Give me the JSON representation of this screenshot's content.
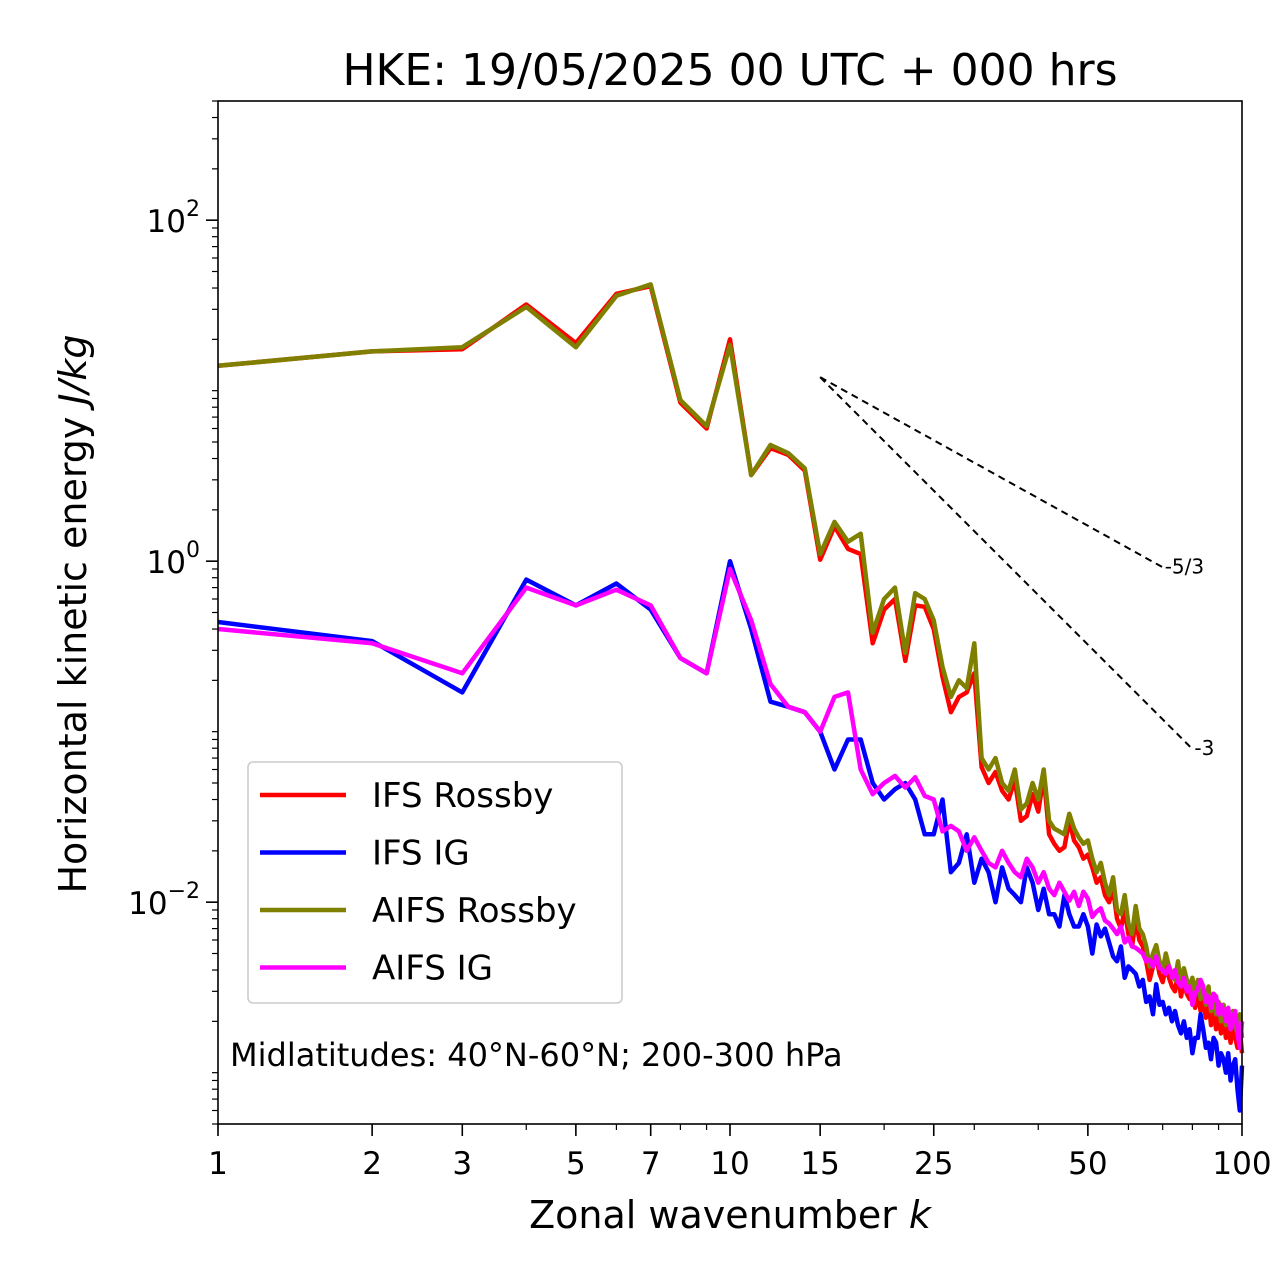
{
  "chart_data": {
    "type": "line",
    "title": "HKE: 19/05/2025 00 UTC + 000 hrs",
    "xlabel": "Zonal wavenumber",
    "xlabel_italic": "k",
    "ylabel": "Horizontal kinetic energy",
    "ylabel_italic": "J/kg",
    "xscale": "log",
    "yscale": "log",
    "xlim": [
      1,
      100
    ],
    "ylim": [
      0.0005,
      500
    ],
    "x_ticks": [
      {
        "value": 1,
        "label": "1"
      },
      {
        "value": 2,
        "label": "2"
      },
      {
        "value": 3,
        "label": "3"
      },
      {
        "value": 5,
        "label": "5"
      },
      {
        "value": 7,
        "label": "7"
      },
      {
        "value": 10,
        "label": "10"
      },
      {
        "value": 15,
        "label": "15"
      },
      {
        "value": 25,
        "label": "25"
      },
      {
        "value": 50,
        "label": "50"
      },
      {
        "value": 100,
        "label": "100"
      }
    ],
    "y_ticks": [
      {
        "value": 0.01,
        "base": "10",
        "exp": "−2"
      },
      {
        "value": 1,
        "base": "10",
        "exp": "0"
      },
      {
        "value": 100,
        "base": "10",
        "exp": "2"
      }
    ],
    "annotation": "Midlatitudes: 40°N-60°N; 200-300 hPa",
    "legend_position": "lower-left",
    "reference_lines": [
      {
        "label": "-5/3",
        "slope": -1.6667,
        "x": [
          15,
          70
        ],
        "y0": 12
      },
      {
        "label": "-3",
        "slope": -3,
        "x": [
          15,
          80
        ],
        "y0": 12
      }
    ],
    "series": [
      {
        "name": "IFS Rossby",
        "color": "#ff0000",
        "x": [
          1,
          2,
          3,
          4,
          5,
          6,
          7,
          8,
          9,
          10,
          11,
          12,
          13,
          14,
          15,
          16,
          17,
          18,
          19,
          20,
          21,
          22,
          23,
          24,
          25,
          26,
          27,
          28,
          29,
          30,
          31,
          32,
          33,
          34,
          35,
          36,
          37,
          38,
          39,
          40,
          41,
          42,
          43,
          44,
          45,
          46,
          47,
          48,
          49,
          50,
          51,
          52,
          53,
          54,
          55,
          56,
          57,
          58,
          59,
          60,
          61,
          62,
          63,
          64,
          65,
          66,
          67,
          68,
          69,
          70,
          71,
          72,
          73,
          74,
          75,
          76,
          77,
          78,
          79,
          80,
          81,
          82,
          83,
          84,
          85,
          86,
          87,
          88,
          89,
          90,
          91,
          92,
          93,
          94,
          95,
          96,
          97,
          98,
          99,
          100
        ],
        "y": [
          14,
          17,
          17.5,
          32,
          19,
          37,
          41,
          8.5,
          6,
          20,
          3.2,
          4.6,
          4.2,
          3.4,
          1.02,
          1.6,
          1.18,
          1.1,
          0.33,
          0.52,
          0.6,
          0.26,
          0.55,
          0.54,
          0.4,
          0.21,
          0.13,
          0.16,
          0.17,
          0.22,
          0.062,
          0.05,
          0.058,
          0.045,
          0.04,
          0.052,
          0.03,
          0.032,
          0.043,
          0.034,
          0.055,
          0.025,
          0.022,
          0.02,
          0.021,
          0.03,
          0.023,
          0.021,
          0.018,
          0.019,
          0.016,
          0.013,
          0.014,
          0.011,
          0.01,
          0.012,
          0.008,
          0.007,
          0.009,
          0.0065,
          0.0055,
          0.008,
          0.006,
          0.0055,
          0.0045,
          0.0035,
          0.0042,
          0.0048,
          0.0038,
          0.0034,
          0.0042,
          0.0036,
          0.0032,
          0.003,
          0.0038,
          0.0028,
          0.0034,
          0.0029,
          0.0027,
          0.003,
          0.0024,
          0.0029,
          0.0023,
          0.0026,
          0.0021,
          0.0027,
          0.0019,
          0.0024,
          0.0018,
          0.0022,
          0.0017,
          0.0021,
          0.0016,
          0.0019,
          0.0015,
          0.0019,
          0.0016,
          0.0014,
          0.0018,
          0.0013
        ]
      },
      {
        "name": "IFS IG",
        "color": "#0000ff",
        "x": [
          1,
          2,
          3,
          4,
          5,
          6,
          7,
          8,
          9,
          10,
          11,
          12,
          13,
          14,
          15,
          16,
          17,
          18,
          19,
          20,
          21,
          22,
          23,
          24,
          25,
          26,
          27,
          28,
          29,
          30,
          31,
          32,
          33,
          34,
          35,
          36,
          37,
          38,
          39,
          40,
          41,
          42,
          43,
          44,
          45,
          46,
          47,
          48,
          49,
          50,
          51,
          52,
          53,
          54,
          55,
          56,
          57,
          58,
          59,
          60,
          61,
          62,
          63,
          64,
          65,
          66,
          67,
          68,
          69,
          70,
          71,
          72,
          73,
          74,
          75,
          76,
          77,
          78,
          79,
          80,
          81,
          82,
          83,
          84,
          85,
          86,
          87,
          88,
          89,
          90,
          91,
          92,
          93,
          94,
          95,
          96,
          97,
          98,
          99,
          100
        ],
        "y": [
          0.44,
          0.34,
          0.17,
          0.78,
          0.55,
          0.74,
          0.52,
          0.27,
          0.22,
          1.0,
          0.4,
          0.15,
          0.14,
          0.13,
          0.1,
          0.06,
          0.09,
          0.09,
          0.05,
          0.04,
          0.046,
          0.05,
          0.04,
          0.025,
          0.025,
          0.04,
          0.015,
          0.017,
          0.025,
          0.013,
          0.018,
          0.015,
          0.01,
          0.016,
          0.012,
          0.011,
          0.01,
          0.016,
          0.013,
          0.009,
          0.012,
          0.0085,
          0.0085,
          0.0072,
          0.011,
          0.0085,
          0.0072,
          0.0072,
          0.0085,
          0.0072,
          0.005,
          0.0074,
          0.0063,
          0.007,
          0.0058,
          0.0048,
          0.0045,
          0.0055,
          0.0036,
          0.0042,
          0.004,
          0.0038,
          0.0032,
          0.0035,
          0.0026,
          0.0028,
          0.0022,
          0.0033,
          0.0025,
          0.0026,
          0.0022,
          0.0024,
          0.002,
          0.0023,
          0.0019,
          0.0017,
          0.002,
          0.0016,
          0.0018,
          0.0013,
          0.0016,
          0.0016,
          0.0022,
          0.0018,
          0.0014,
          0.0015,
          0.0012,
          0.0016,
          0.0015,
          0.0011,
          0.0013,
          0.0012,
          0.001,
          0.0013,
          0.0009,
          0.0011,
          0.0012,
          0.0008,
          0.0006,
          0.0011
        ]
      },
      {
        "name": "AIFS Rossby",
        "color": "#808000",
        "x": [
          1,
          2,
          3,
          4,
          5,
          6,
          7,
          8,
          9,
          10,
          11,
          12,
          13,
          14,
          15,
          16,
          17,
          18,
          19,
          20,
          21,
          22,
          23,
          24,
          25,
          26,
          27,
          28,
          29,
          30,
          31,
          32,
          33,
          34,
          35,
          36,
          37,
          38,
          39,
          40,
          41,
          42,
          43,
          44,
          45,
          46,
          47,
          48,
          49,
          50,
          51,
          52,
          53,
          54,
          55,
          56,
          57,
          58,
          59,
          60,
          61,
          62,
          63,
          64,
          65,
          66,
          67,
          68,
          69,
          70,
          71,
          72,
          73,
          74,
          75,
          76,
          77,
          78,
          79,
          80,
          81,
          82,
          83,
          84,
          85,
          86,
          87,
          88,
          89,
          90,
          91,
          92,
          93,
          94,
          95,
          96,
          97,
          98,
          99,
          100
        ],
        "y": [
          14,
          17,
          18,
          31,
          18,
          36,
          42,
          8.8,
          6.2,
          18.5,
          3.2,
          4.8,
          4.3,
          3.5,
          1.1,
          1.7,
          1.3,
          1.45,
          0.38,
          0.6,
          0.7,
          0.29,
          0.65,
          0.6,
          0.45,
          0.24,
          0.16,
          0.2,
          0.18,
          0.33,
          0.07,
          0.06,
          0.07,
          0.05,
          0.045,
          0.06,
          0.035,
          0.038,
          0.05,
          0.04,
          0.06,
          0.03,
          0.027,
          0.026,
          0.025,
          0.033,
          0.027,
          0.024,
          0.022,
          0.023,
          0.018,
          0.015,
          0.017,
          0.013,
          0.011,
          0.014,
          0.009,
          0.0085,
          0.011,
          0.0075,
          0.0065,
          0.0095,
          0.007,
          0.0065,
          0.0055,
          0.0042,
          0.005,
          0.0056,
          0.0045,
          0.004,
          0.005,
          0.0042,
          0.0038,
          0.0035,
          0.0045,
          0.0033,
          0.0041,
          0.0035,
          0.0032,
          0.0036,
          0.0029,
          0.0035,
          0.0027,
          0.0031,
          0.0025,
          0.0032,
          0.0023,
          0.0029,
          0.0022,
          0.0026,
          0.002,
          0.0025,
          0.0019,
          0.0023,
          0.0018,
          0.0023,
          0.0019,
          0.0017,
          0.0022,
          0.0016
        ]
      },
      {
        "name": "AIFS IG",
        "color": "#ff00ff",
        "x": [
          1,
          2,
          3,
          4,
          5,
          6,
          7,
          8,
          9,
          10,
          11,
          12,
          13,
          14,
          15,
          16,
          17,
          18,
          19,
          20,
          21,
          22,
          23,
          24,
          25,
          26,
          27,
          28,
          29,
          30,
          31,
          32,
          33,
          34,
          35,
          36,
          37,
          38,
          39,
          40,
          41,
          42,
          43,
          44,
          45,
          46,
          47,
          48,
          49,
          50,
          51,
          52,
          53,
          54,
          55,
          56,
          57,
          58,
          59,
          60,
          61,
          62,
          63,
          64,
          65,
          66,
          67,
          68,
          69,
          70,
          71,
          72,
          73,
          74,
          75,
          76,
          77,
          78,
          79,
          80,
          81,
          82,
          83,
          84,
          85,
          86,
          87,
          88,
          89,
          90,
          91,
          92,
          93,
          94,
          95,
          96,
          97,
          98,
          99,
          100
        ],
        "y": [
          0.4,
          0.33,
          0.22,
          0.7,
          0.55,
          0.68,
          0.55,
          0.27,
          0.22,
          0.9,
          0.45,
          0.19,
          0.14,
          0.13,
          0.1,
          0.16,
          0.17,
          0.06,
          0.043,
          0.05,
          0.055,
          0.047,
          0.054,
          0.042,
          0.04,
          0.026,
          0.028,
          0.026,
          0.02,
          0.024,
          0.02,
          0.017,
          0.016,
          0.02,
          0.017,
          0.015,
          0.014,
          0.018,
          0.016,
          0.013,
          0.015,
          0.012,
          0.011,
          0.013,
          0.0115,
          0.0102,
          0.0115,
          0.0095,
          0.0115,
          0.0105,
          0.0082,
          0.0088,
          0.0092,
          0.0078,
          0.0075,
          0.007,
          0.0065,
          0.0072,
          0.0058,
          0.0062,
          0.0055,
          0.0054,
          0.0052,
          0.005,
          0.0045,
          0.0046,
          0.0042,
          0.0048,
          0.0041,
          0.004,
          0.0038,
          0.0042,
          0.0036,
          0.004,
          0.0034,
          0.0032,
          0.0036,
          0.003,
          0.0032,
          0.0025,
          0.0029,
          0.0031,
          0.0035,
          0.0032,
          0.0026,
          0.0028,
          0.0024,
          0.0029,
          0.0028,
          0.0022,
          0.0025,
          0.0023,
          0.002,
          0.0024,
          0.0018,
          0.0021,
          0.0023,
          0.0017,
          0.0014,
          0.002
        ]
      }
    ]
  }
}
